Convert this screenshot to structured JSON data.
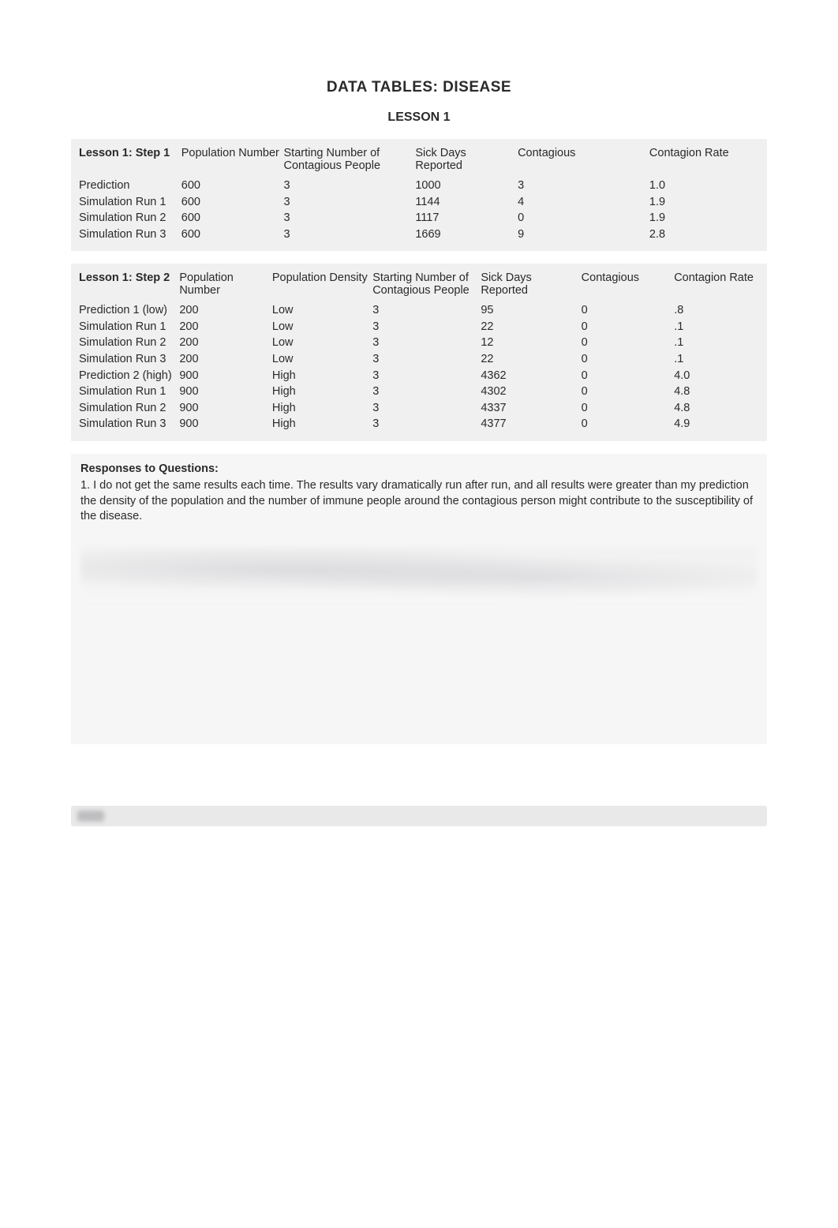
{
  "header": {
    "title": "DATA TABLES: DISEASE",
    "subtitle": "LESSON 1"
  },
  "table1": {
    "heading": "Lesson 1: Step 1",
    "columns": [
      "Population Number",
      "Starting Number of Contagious People",
      "Sick Days Reported",
      "Contagious",
      "Contagion Rate"
    ],
    "rows": [
      {
        "label": "Prediction",
        "pop": "600",
        "start": "3",
        "sick": "1000",
        "cont": "3",
        "rate": "1.0"
      },
      {
        "label": "Simulation Run 1",
        "pop": "600",
        "start": "3",
        "sick": "1144",
        "cont": "4",
        "rate": "1.9"
      },
      {
        "label": "Simulation Run 2",
        "pop": "600",
        "start": "3",
        "sick": "1117",
        "cont": "0",
        "rate": "1.9"
      },
      {
        "label": "Simulation Run 3",
        "pop": "600",
        "start": "3",
        "sick": "1669",
        "cont": "9",
        "rate": "2.8"
      }
    ]
  },
  "table2": {
    "heading": "Lesson 1: Step 2",
    "columns": [
      "Population Number",
      "Population Density",
      "Starting Number of Contagious People",
      "Sick Days Reported",
      "Contagious",
      "Contagion Rate"
    ],
    "rows": [
      {
        "label": "Prediction 1 (low)",
        "pop": "200",
        "dens": "Low",
        "start": "3",
        "sick": "95",
        "cont": "0",
        "rate": ".8"
      },
      {
        "label": "Simulation Run 1",
        "pop": "200",
        "dens": "Low",
        "start": "3",
        "sick": "22",
        "cont": "0",
        "rate": ".1"
      },
      {
        "label": "Simulation Run 2",
        "pop": "200",
        "dens": "Low",
        "start": "3",
        "sick": "12",
        "cont": "0",
        "rate": ".1"
      },
      {
        "label": "Simulation Run 3",
        "pop": "200",
        "dens": "Low",
        "start": "3",
        "sick": "22",
        "cont": "0",
        "rate": ".1"
      },
      {
        "label": "Prediction 2 (high)",
        "pop": "900",
        "dens": "High",
        "start": "3",
        "sick": "4362",
        "cont": "0",
        "rate": "4.0"
      },
      {
        "label": "Simulation Run 1",
        "pop": "900",
        "dens": "High",
        "start": "3",
        "sick": "4302",
        "cont": "0",
        "rate": "4.8"
      },
      {
        "label": "Simulation Run 2",
        "pop": "900",
        "dens": "High",
        "start": "3",
        "sick": "4337",
        "cont": "0",
        "rate": "4.8"
      },
      {
        "label": "Simulation Run 3",
        "pop": "900",
        "dens": "High",
        "start": "3",
        "sick": "4377",
        "cont": "0",
        "rate": "4.9"
      }
    ]
  },
  "responses": {
    "heading": "Responses to Questions:",
    "q1": "1. I do not get the same results each time. The results vary dramatically run after run, and all results were greater than my prediction the density of the population and the number of immune people around the contagious person might contribute to the susceptibility of the disease."
  },
  "style": {
    "page_bg": "#ffffff",
    "panel_bg": "#f0f0f0",
    "responses_bg": "#f7f6f6",
    "text_color": "#2a2a2a",
    "title_fontsize_pt": 14,
    "body_fontsize_pt": 11
  }
}
